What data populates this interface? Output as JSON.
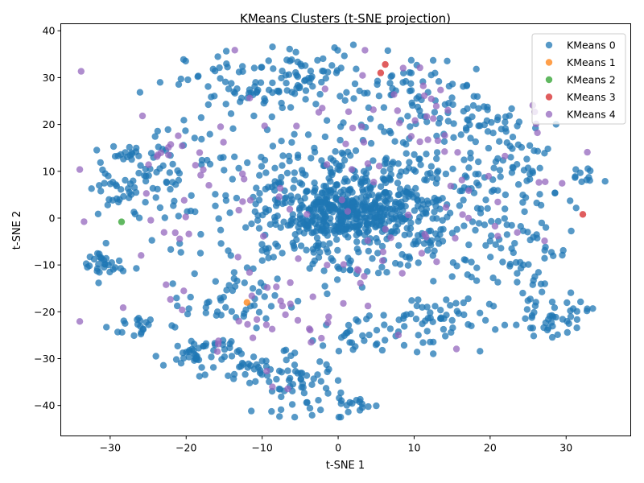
{
  "chart_data": {
    "type": "scatter",
    "title": "KMeans Clusters (t-SNE projection)",
    "xlabel": "t-SNE 1",
    "ylabel": "t-SNE 2",
    "xlim": [
      -36.5,
      38.5
    ],
    "ylim": [
      -46.5,
      41.5
    ],
    "xticks": [
      -30,
      -20,
      -10,
      0,
      10,
      20,
      30
    ],
    "yticks": [
      -40,
      -30,
      -20,
      -10,
      0,
      10,
      20,
      30,
      40
    ],
    "grid": false,
    "legend_position": "top-right",
    "point_alpha": 0.75,
    "series": [
      {
        "name": "KMeans 0",
        "color": "#1f77b4",
        "clusters": [
          {
            "cx": 1,
            "cy": 1,
            "sx": 3.5,
            "sy": 3,
            "n": 260
          },
          {
            "cx": -2,
            "cy": 2,
            "sx": 8.5,
            "sy": 7.5,
            "n": 330
          },
          {
            "cx": 10,
            "cy": 2,
            "sx": 7,
            "sy": 8,
            "n": 220
          },
          {
            "cx": -12,
            "cy": 28,
            "sx": 4,
            "sy": 4,
            "n": 70
          },
          {
            "cx": -3,
            "cy": 30,
            "sx": 3,
            "sy": 3.5,
            "n": 50
          },
          {
            "cx": 9,
            "cy": 27,
            "sx": 3.5,
            "sy": 4,
            "n": 50
          },
          {
            "cx": 16,
            "cy": 22,
            "sx": 4,
            "sy": 4,
            "n": 45
          },
          {
            "cx": 24,
            "cy": 13,
            "sx": 4,
            "sy": 5,
            "n": 55
          },
          {
            "cx": -5,
            "cy": -36,
            "sx": 3,
            "sy": 3,
            "n": 50
          },
          {
            "cx": 2,
            "cy": -40,
            "sx": 1.5,
            "sy": 1.2,
            "n": 15
          },
          {
            "cx": -18,
            "cy": -29,
            "sx": 2.5,
            "sy": 2,
            "n": 50
          },
          {
            "cx": -10,
            "cy": -33,
            "sx": 2.5,
            "sy": 1.8,
            "n": 30
          },
          {
            "cx": -22,
            "cy": 10,
            "sx": 3.5,
            "sy": 7,
            "n": 60
          },
          {
            "cx": -29,
            "cy": 5,
            "sx": 2.2,
            "sy": 3,
            "n": 30
          },
          {
            "cx": -31,
            "cy": -10,
            "sx": 1.5,
            "sy": 1.8,
            "n": 30
          },
          {
            "cx": -26,
            "cy": -23,
            "sx": 2,
            "sy": 1.5,
            "n": 20
          },
          {
            "cx": 28,
            "cy": -21,
            "sx": 2.5,
            "sy": 2,
            "n": 45
          },
          {
            "cx": 25,
            "cy": -5,
            "sx": 3,
            "sy": 6,
            "n": 50
          },
          {
            "cx": 12,
            "cy": -22,
            "sx": 4,
            "sy": 3,
            "n": 55
          },
          {
            "cx": 2,
            "cy": -26,
            "sx": 3,
            "sy": 2.5,
            "n": 30
          },
          {
            "cx": -14,
            "cy": -18,
            "sx": 3,
            "sy": 2.5,
            "n": 40
          },
          {
            "cx": 32,
            "cy": 8,
            "sx": 1.5,
            "sy": 1.5,
            "n": 10
          },
          {
            "cx": -28,
            "cy": 14,
            "sx": 2,
            "sy": 1.5,
            "n": 15
          }
        ]
      },
      {
        "name": "KMeans 1",
        "color": "#ff7f0e",
        "points": [
          [
            -12,
            -18
          ]
        ]
      },
      {
        "name": "KMeans 2",
        "color": "#2ca02c",
        "points": [
          [
            -28.5,
            -0.8
          ]
        ]
      },
      {
        "name": "KMeans 3",
        "color": "#d62728",
        "points": [
          [
            6.2,
            32.8
          ],
          [
            5.6,
            31
          ],
          [
            32.2,
            0.8
          ]
        ]
      },
      {
        "name": "KMeans 4",
        "color": "#9467bd",
        "clusters": [
          {
            "cx": -2,
            "cy": 2,
            "sx": 13,
            "sy": 16,
            "n": 90
          },
          {
            "cx": 8,
            "cy": 22,
            "sx": 6,
            "sy": 8,
            "n": 25
          },
          {
            "cx": -8,
            "cy": -20,
            "sx": 7,
            "sy": 5,
            "n": 25
          },
          {
            "cx": -21,
            "cy": 14,
            "sx": 2.5,
            "sy": 4,
            "n": 12
          },
          {
            "cx": 27,
            "cy": 12,
            "sx": 4,
            "sy": 8,
            "n": 10
          }
        ]
      }
    ]
  }
}
